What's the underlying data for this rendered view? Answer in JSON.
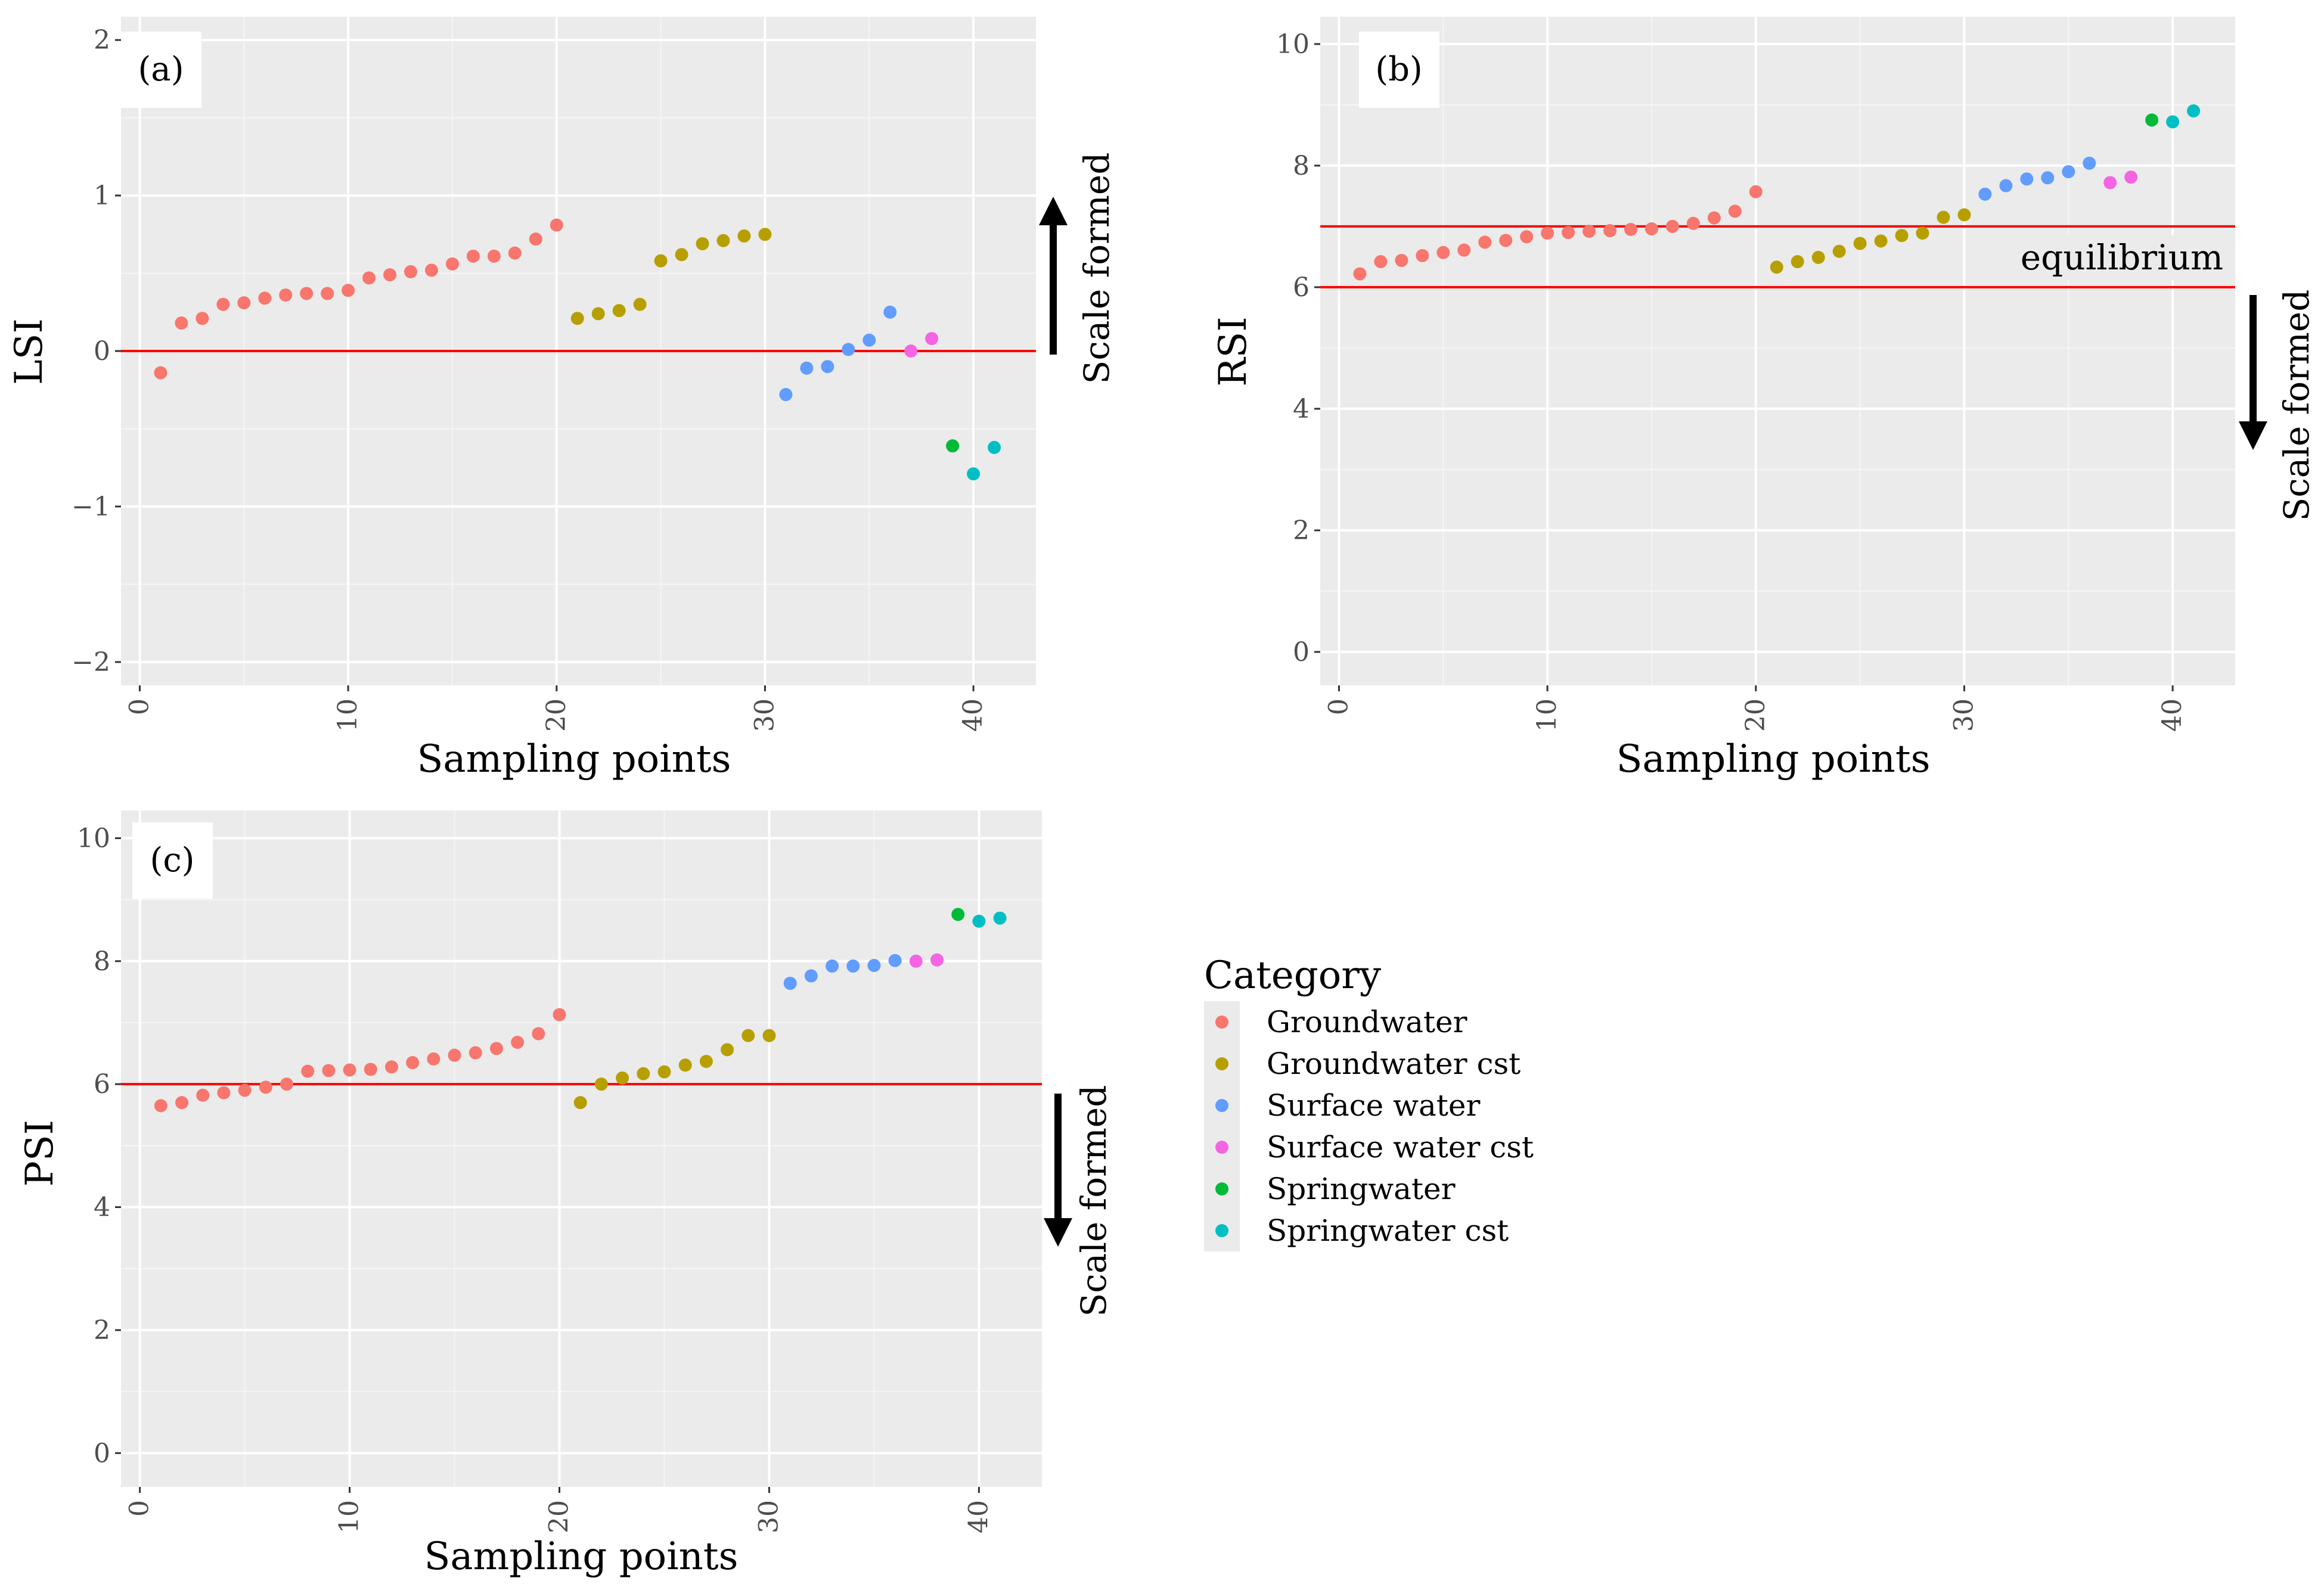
{
  "colors": {
    "panel_bg": "#ebebeb",
    "grid_major": "#ffffff",
    "grid_minor": "#f5f5f5",
    "ref_line": "#ff0000",
    "arrow": "#000000"
  },
  "chart_data": [
    {
      "type": "scatter",
      "panel_label": "(a)",
      "xlabel": "Sampling points",
      "ylabel": "LSI",
      "xlim": [
        -0.9,
        43
      ],
      "ylim": [
        -2.15,
        2.15
      ],
      "x_ticks": [
        0,
        10,
        20,
        30,
        40
      ],
      "y_ticks": [
        -2,
        -1,
        0,
        1,
        2
      ],
      "y_tick_labels": [
        "−2",
        "−1",
        "0",
        "1",
        "2"
      ],
      "ref_lines": [
        0
      ],
      "annotation": "Scale formed",
      "annotation_direction": "up",
      "points": [
        {
          "x": 1,
          "y": -0.14,
          "category": "Groundwater"
        },
        {
          "x": 2,
          "y": 0.18,
          "category": "Groundwater"
        },
        {
          "x": 3,
          "y": 0.21,
          "category": "Groundwater"
        },
        {
          "x": 4,
          "y": 0.3,
          "category": "Groundwater"
        },
        {
          "x": 5,
          "y": 0.31,
          "category": "Groundwater"
        },
        {
          "x": 6,
          "y": 0.34,
          "category": "Groundwater"
        },
        {
          "x": 7,
          "y": 0.36,
          "category": "Groundwater"
        },
        {
          "x": 8,
          "y": 0.37,
          "category": "Groundwater"
        },
        {
          "x": 9,
          "y": 0.37,
          "category": "Groundwater"
        },
        {
          "x": 10,
          "y": 0.39,
          "category": "Groundwater"
        },
        {
          "x": 11,
          "y": 0.47,
          "category": "Groundwater"
        },
        {
          "x": 12,
          "y": 0.49,
          "category": "Groundwater"
        },
        {
          "x": 13,
          "y": 0.51,
          "category": "Groundwater"
        },
        {
          "x": 14,
          "y": 0.52,
          "category": "Groundwater"
        },
        {
          "x": 15,
          "y": 0.56,
          "category": "Groundwater"
        },
        {
          "x": 16,
          "y": 0.61,
          "category": "Groundwater"
        },
        {
          "x": 17,
          "y": 0.61,
          "category": "Groundwater"
        },
        {
          "x": 18,
          "y": 0.63,
          "category": "Groundwater"
        },
        {
          "x": 19,
          "y": 0.72,
          "category": "Groundwater"
        },
        {
          "x": 20,
          "y": 0.81,
          "category": "Groundwater"
        },
        {
          "x": 21,
          "y": 0.21,
          "category": "Groundwater cst"
        },
        {
          "x": 22,
          "y": 0.24,
          "category": "Groundwater cst"
        },
        {
          "x": 23,
          "y": 0.26,
          "category": "Groundwater cst"
        },
        {
          "x": 24,
          "y": 0.3,
          "category": "Groundwater cst"
        },
        {
          "x": 25,
          "y": 0.58,
          "category": "Groundwater cst"
        },
        {
          "x": 26,
          "y": 0.62,
          "category": "Groundwater cst"
        },
        {
          "x": 27,
          "y": 0.69,
          "category": "Groundwater cst"
        },
        {
          "x": 28,
          "y": 0.71,
          "category": "Groundwater cst"
        },
        {
          "x": 29,
          "y": 0.74,
          "category": "Groundwater cst"
        },
        {
          "x": 30,
          "y": 0.75,
          "category": "Groundwater cst"
        },
        {
          "x": 31,
          "y": -0.28,
          "category": "Surface water"
        },
        {
          "x": 32,
          "y": -0.11,
          "category": "Surface water"
        },
        {
          "x": 33,
          "y": -0.1,
          "category": "Surface water"
        },
        {
          "x": 34,
          "y": 0.01,
          "category": "Surface water"
        },
        {
          "x": 35,
          "y": 0.07,
          "category": "Surface water"
        },
        {
          "x": 36,
          "y": 0.25,
          "category": "Surface water"
        },
        {
          "x": 37,
          "y": 0.0,
          "category": "Surface water cst"
        },
        {
          "x": 38,
          "y": 0.08,
          "category": "Surface water cst"
        },
        {
          "x": 39,
          "y": -0.61,
          "category": "Springwater"
        },
        {
          "x": 40,
          "y": -0.79,
          "category": "Springwater cst"
        },
        {
          "x": 41,
          "y": -0.62,
          "category": "Springwater cst"
        }
      ]
    },
    {
      "type": "scatter",
      "panel_label": "(b)",
      "xlabel": "Sampling points",
      "ylabel": "RSI",
      "xlim": [
        -0.9,
        43
      ],
      "ylim": [
        -0.55,
        10.45
      ],
      "x_ticks": [
        0,
        10,
        20,
        30,
        40
      ],
      "y_ticks": [
        0,
        2,
        4,
        6,
        8,
        10
      ],
      "y_tick_labels": [
        "0",
        "2",
        "4",
        "6",
        "8",
        "10"
      ],
      "ref_lines": [
        6,
        7
      ],
      "ref_label": "equilibrium",
      "annotation": "Scale formed",
      "annotation_direction": "down",
      "points": [
        {
          "x": 1,
          "y": 6.22,
          "category": "Groundwater"
        },
        {
          "x": 2,
          "y": 6.42,
          "category": "Groundwater"
        },
        {
          "x": 3,
          "y": 6.44,
          "category": "Groundwater"
        },
        {
          "x": 4,
          "y": 6.52,
          "category": "Groundwater"
        },
        {
          "x": 5,
          "y": 6.57,
          "category": "Groundwater"
        },
        {
          "x": 6,
          "y": 6.61,
          "category": "Groundwater"
        },
        {
          "x": 7,
          "y": 6.74,
          "category": "Groundwater"
        },
        {
          "x": 8,
          "y": 6.77,
          "category": "Groundwater"
        },
        {
          "x": 9,
          "y": 6.83,
          "category": "Groundwater"
        },
        {
          "x": 10,
          "y": 6.89,
          "category": "Groundwater"
        },
        {
          "x": 11,
          "y": 6.9,
          "category": "Groundwater"
        },
        {
          "x": 12,
          "y": 6.92,
          "category": "Groundwater"
        },
        {
          "x": 13,
          "y": 6.93,
          "category": "Groundwater"
        },
        {
          "x": 14,
          "y": 6.95,
          "category": "Groundwater"
        },
        {
          "x": 15,
          "y": 6.96,
          "category": "Groundwater"
        },
        {
          "x": 16,
          "y": 7.0,
          "category": "Groundwater"
        },
        {
          "x": 17,
          "y": 7.05,
          "category": "Groundwater"
        },
        {
          "x": 18,
          "y": 7.14,
          "category": "Groundwater"
        },
        {
          "x": 19,
          "y": 7.25,
          "category": "Groundwater"
        },
        {
          "x": 20,
          "y": 7.57,
          "category": "Groundwater"
        },
        {
          "x": 21,
          "y": 6.33,
          "category": "Groundwater cst"
        },
        {
          "x": 22,
          "y": 6.42,
          "category": "Groundwater cst"
        },
        {
          "x": 23,
          "y": 6.49,
          "category": "Groundwater cst"
        },
        {
          "x": 24,
          "y": 6.59,
          "category": "Groundwater cst"
        },
        {
          "x": 25,
          "y": 6.72,
          "category": "Groundwater cst"
        },
        {
          "x": 26,
          "y": 6.76,
          "category": "Groundwater cst"
        },
        {
          "x": 27,
          "y": 6.85,
          "category": "Groundwater cst"
        },
        {
          "x": 28,
          "y": 6.89,
          "category": "Groundwater cst"
        },
        {
          "x": 29,
          "y": 7.15,
          "category": "Groundwater cst"
        },
        {
          "x": 30,
          "y": 7.19,
          "category": "Groundwater cst"
        },
        {
          "x": 31,
          "y": 7.53,
          "category": "Surface water"
        },
        {
          "x": 32,
          "y": 7.67,
          "category": "Surface water"
        },
        {
          "x": 33,
          "y": 7.78,
          "category": "Surface water"
        },
        {
          "x": 34,
          "y": 7.8,
          "category": "Surface water"
        },
        {
          "x": 35,
          "y": 7.9,
          "category": "Surface water"
        },
        {
          "x": 36,
          "y": 8.04,
          "category": "Surface water"
        },
        {
          "x": 37,
          "y": 7.72,
          "category": "Surface water cst"
        },
        {
          "x": 38,
          "y": 7.81,
          "category": "Surface water cst"
        },
        {
          "x": 39,
          "y": 8.75,
          "category": "Springwater"
        },
        {
          "x": 40,
          "y": 8.72,
          "category": "Springwater cst"
        },
        {
          "x": 41,
          "y": 8.9,
          "category": "Springwater cst"
        }
      ]
    },
    {
      "type": "scatter",
      "panel_label": "(c)",
      "xlabel": "Sampling points",
      "ylabel": "PSI",
      "xlim": [
        -0.9,
        43
      ],
      "ylim": [
        -0.55,
        10.45
      ],
      "x_ticks": [
        0,
        10,
        20,
        30,
        40
      ],
      "y_ticks": [
        0,
        2,
        4,
        6,
        8,
        10
      ],
      "y_tick_labels": [
        "0",
        "2",
        "4",
        "6",
        "8",
        "10"
      ],
      "ref_lines": [
        6
      ],
      "annotation": "Scale formed",
      "annotation_direction": "down",
      "points": [
        {
          "x": 1,
          "y": 5.65,
          "category": "Groundwater"
        },
        {
          "x": 2,
          "y": 5.7,
          "category": "Groundwater"
        },
        {
          "x": 3,
          "y": 5.82,
          "category": "Groundwater"
        },
        {
          "x": 4,
          "y": 5.86,
          "category": "Groundwater"
        },
        {
          "x": 5,
          "y": 5.9,
          "category": "Groundwater"
        },
        {
          "x": 6,
          "y": 5.95,
          "category": "Groundwater"
        },
        {
          "x": 7,
          "y": 6.0,
          "category": "Groundwater"
        },
        {
          "x": 8,
          "y": 6.21,
          "category": "Groundwater"
        },
        {
          "x": 9,
          "y": 6.22,
          "category": "Groundwater"
        },
        {
          "x": 10,
          "y": 6.23,
          "category": "Groundwater"
        },
        {
          "x": 11,
          "y": 6.24,
          "category": "Groundwater"
        },
        {
          "x": 12,
          "y": 6.28,
          "category": "Groundwater"
        },
        {
          "x": 13,
          "y": 6.35,
          "category": "Groundwater"
        },
        {
          "x": 14,
          "y": 6.41,
          "category": "Groundwater"
        },
        {
          "x": 15,
          "y": 6.47,
          "category": "Groundwater"
        },
        {
          "x": 16,
          "y": 6.51,
          "category": "Groundwater"
        },
        {
          "x": 17,
          "y": 6.58,
          "category": "Groundwater"
        },
        {
          "x": 18,
          "y": 6.68,
          "category": "Groundwater"
        },
        {
          "x": 19,
          "y": 6.82,
          "category": "Groundwater"
        },
        {
          "x": 20,
          "y": 7.13,
          "category": "Groundwater"
        },
        {
          "x": 21,
          "y": 5.7,
          "category": "Groundwater cst"
        },
        {
          "x": 22,
          "y": 6.0,
          "category": "Groundwater cst"
        },
        {
          "x": 23,
          "y": 6.1,
          "category": "Groundwater cst"
        },
        {
          "x": 24,
          "y": 6.17,
          "category": "Groundwater cst"
        },
        {
          "x": 25,
          "y": 6.2,
          "category": "Groundwater cst"
        },
        {
          "x": 26,
          "y": 6.31,
          "category": "Groundwater cst"
        },
        {
          "x": 27,
          "y": 6.37,
          "category": "Groundwater cst"
        },
        {
          "x": 28,
          "y": 6.56,
          "category": "Groundwater cst"
        },
        {
          "x": 29,
          "y": 6.79,
          "category": "Groundwater cst"
        },
        {
          "x": 30,
          "y": 6.79,
          "category": "Groundwater cst"
        },
        {
          "x": 31,
          "y": 7.64,
          "category": "Surface water"
        },
        {
          "x": 32,
          "y": 7.76,
          "category": "Surface water"
        },
        {
          "x": 33,
          "y": 7.92,
          "category": "Surface water"
        },
        {
          "x": 34,
          "y": 7.92,
          "category": "Surface water"
        },
        {
          "x": 35,
          "y": 7.93,
          "category": "Surface water"
        },
        {
          "x": 36,
          "y": 8.01,
          "category": "Surface water"
        },
        {
          "x": 37,
          "y": 8.0,
          "category": "Surface water cst"
        },
        {
          "x": 38,
          "y": 8.02,
          "category": "Surface water cst"
        },
        {
          "x": 39,
          "y": 8.76,
          "category": "Springwater"
        },
        {
          "x": 40,
          "y": 8.65,
          "category": "Springwater cst"
        },
        {
          "x": 41,
          "y": 8.7,
          "category": "Springwater cst"
        }
      ]
    }
  ],
  "legend": {
    "title": "Category",
    "items": [
      {
        "label": "Groundwater",
        "color": "#f8766d"
      },
      {
        "label": "Groundwater cst",
        "color": "#b79f00"
      },
      {
        "label": "Surface water",
        "color": "#00bfc4"
      },
      {
        "label": "Surface water cst",
        "color": "#f564e3"
      },
      {
        "label": "Springwater",
        "color": "#00ba38"
      },
      {
        "label": "Springwater cst",
        "color": "#00bfc4"
      }
    ]
  }
}
